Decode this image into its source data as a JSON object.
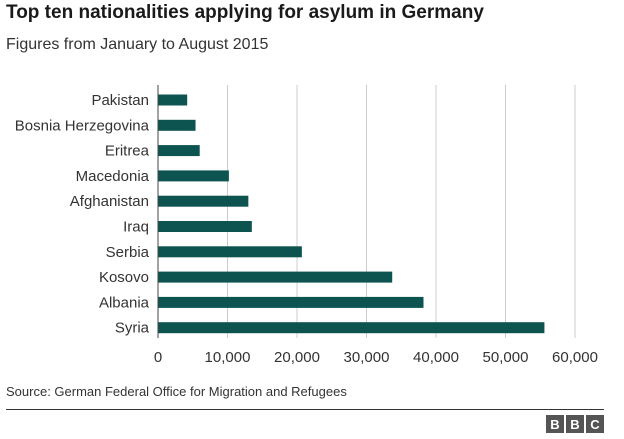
{
  "header": {
    "title": "Top ten nationalities applying for asylum in Germany",
    "subtitle": "Figures from January to August 2015"
  },
  "footer": {
    "source": "Source: German Federal Office for Migration and Refugees",
    "logo_letters": [
      "B",
      "B",
      "C"
    ]
  },
  "colors": {
    "bar": "#0d5350",
    "grid": "#cccccc",
    "axis": "#444444"
  },
  "chart_data": {
    "type": "bar",
    "orientation": "horizontal",
    "categories": [
      "Pakistan",
      "Bosnia Herzegovina",
      "Eritrea",
      "Macedonia",
      "Afghanistan",
      "Iraq",
      "Serbia",
      "Kosovo",
      "Albania",
      "Syria"
    ],
    "values": [
      4200,
      5400,
      6000,
      10200,
      13000,
      13500,
      20700,
      33700,
      38200,
      55600
    ],
    "xlim": [
      0,
      60000
    ],
    "xticks": [
      0,
      10000,
      20000,
      30000,
      40000,
      50000,
      60000
    ],
    "xtick_labels": [
      "0",
      "10,000",
      "20,000",
      "30,000",
      "40,000",
      "50,000",
      "60,000"
    ],
    "grid": true
  }
}
